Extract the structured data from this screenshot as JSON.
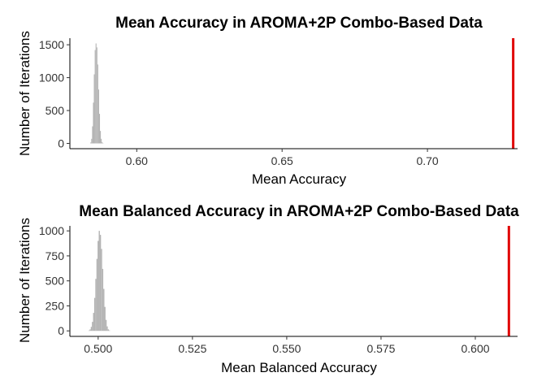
{
  "chart_data": [
    {
      "type": "histogram",
      "title": "Mean Accuracy in AROMA+2P Combo-Based Data",
      "xlabel": "Mean Accuracy",
      "ylabel": "Number of Iterations",
      "xlim": [
        0.577,
        0.731
      ],
      "ylim": [
        -80,
        1600
      ],
      "xticks": [
        "0.60",
        "0.65",
        "0.70"
      ],
      "yticks": [
        "0",
        "500",
        "1000",
        "1500"
      ],
      "grid": false,
      "bar_color": "#b3b3b3",
      "reference_line": {
        "x": 0.7295,
        "color": "#e00000"
      },
      "bins": {
        "x": [
          0.5842,
          0.5845,
          0.5848,
          0.5851,
          0.5854,
          0.5857,
          0.586,
          0.5863,
          0.5866,
          0.5869,
          0.5872,
          0.5875,
          0.5878,
          0.5881,
          0.5884
        ],
        "counts": [
          15,
          70,
          260,
          620,
          1050,
          1420,
          1520,
          1460,
          1200,
          820,
          450,
          190,
          70,
          20,
          5
        ]
      }
    },
    {
      "type": "histogram",
      "title": "Mean Balanced Accuracy in AROMA+2P Combo-Based Data",
      "xlabel": "Mean Balanced Accuracy",
      "ylabel": "Number of Iterations",
      "xlim": [
        0.4925,
        0.6112
      ],
      "ylim": [
        -55,
        1050
      ],
      "xticks": [
        "0.500",
        "0.525",
        "0.550",
        "0.575",
        "0.600"
      ],
      "yticks": [
        "0",
        "250",
        "500",
        "750",
        "1000"
      ],
      "grid": false,
      "bar_color": "#b3b3b3",
      "reference_line": {
        "x": 0.6089,
        "color": "#e00000"
      },
      "bins": {
        "x": [
          0.4976,
          0.4979,
          0.4982,
          0.4985,
          0.4988,
          0.4991,
          0.4994,
          0.4997,
          0.5,
          0.5003,
          0.5006,
          0.5009,
          0.5012,
          0.5015,
          0.5018,
          0.5021,
          0.5024,
          0.5027,
          0.503
        ],
        "counts": [
          5,
          15,
          40,
          90,
          180,
          330,
          520,
          720,
          900,
          1000,
          960,
          820,
          620,
          420,
          240,
          110,
          45,
          15,
          5
        ]
      }
    }
  ]
}
